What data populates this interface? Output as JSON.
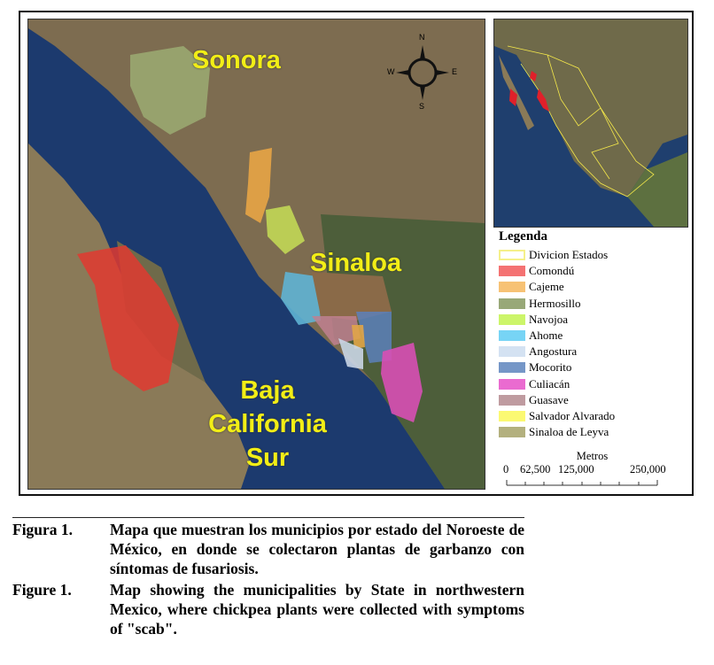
{
  "map": {
    "labels": [
      "Sonora",
      "Sinaloa",
      "Baja California Sur"
    ],
    "compass": {
      "n": "N",
      "s": "S",
      "e": "E",
      "w": "W"
    },
    "colors": {
      "sea": "#1c3a6e",
      "land": "#7a6a4e"
    }
  },
  "legend": {
    "title": "Legenda",
    "items": [
      {
        "label": "Divicion Estados",
        "color": "#ffffff",
        "border": "#f5f08a"
      },
      {
        "label": "Comondú",
        "color": "#f47272"
      },
      {
        "label": "Cajeme",
        "color": "#f7c275"
      },
      {
        "label": "Hermosillo",
        "color": "#98a878"
      },
      {
        "label": "Navojoa",
        "color": "#ccf56a"
      },
      {
        "label": "Ahome",
        "color": "#77d4f5"
      },
      {
        "label": "Angostura",
        "color": "#d4e2f2"
      },
      {
        "label": "Mocorito",
        "color": "#7596c7"
      },
      {
        "label": "Culiacán",
        "color": "#ea6bd0"
      },
      {
        "label": "Guasave",
        "color": "#bf9ba0"
      },
      {
        "label": "Salvador Alvarado",
        "color": "#fbf972"
      },
      {
        "label": "Sinaloa de Leyva",
        "color": "#b3b07e"
      }
    ]
  },
  "scale": {
    "unit": "Metros",
    "ticks": [
      "0",
      "62,500",
      "125,000",
      "250,000"
    ]
  },
  "caption": [
    {
      "key": "Figura 1.",
      "text": "Mapa que muestran los municipios por estado del Noroeste de México, en donde se colectaron plantas de garbanzo con síntomas de fusariosis."
    },
    {
      "key": "Figure 1.",
      "text": "Map showing the municipalities by State in northwestern Mexico, where chickpea plants were collected with symptoms of \"scab\"."
    }
  ]
}
